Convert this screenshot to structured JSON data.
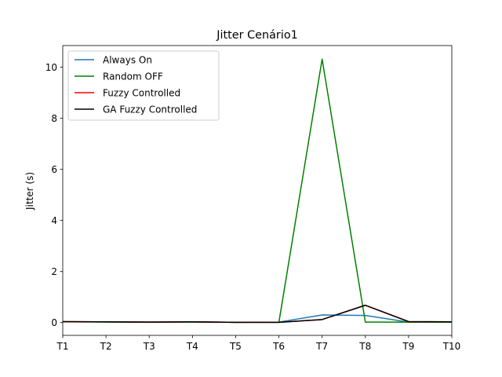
{
  "chart_data": {
    "type": "line",
    "title": "Jitter Cenário1",
    "xlabel": "",
    "ylabel": "Jitter (s)",
    "categories": [
      "T1",
      "T2",
      "T3",
      "T4",
      "T5",
      "T6",
      "T7",
      "T8",
      "T9",
      "T10"
    ],
    "ylim": [
      -0.5,
      10.85
    ],
    "yticks": [
      0,
      2,
      4,
      6,
      8,
      10
    ],
    "grid": false,
    "legend_position": "top-left",
    "series": [
      {
        "name": "Always On",
        "color": "#1f77b4",
        "values": [
          0.03,
          0.03,
          0.02,
          0.03,
          0.01,
          0.02,
          0.3,
          0.28,
          0.02,
          0.02
        ]
      },
      {
        "name": "Random OFF",
        "color": "#008000",
        "values": [
          0.03,
          0.02,
          0.02,
          0.02,
          0.01,
          0.01,
          10.32,
          0.02,
          0.02,
          0.02
        ]
      },
      {
        "name": "Fuzzy Controlled",
        "color": "#ff0000",
        "values": [
          0.04,
          0.03,
          0.02,
          0.03,
          0.01,
          0.01,
          0.12,
          0.68,
          0.04,
          0.03
        ]
      },
      {
        "name": "GA Fuzzy Controlled",
        "color": "#000000",
        "values": [
          0.04,
          0.03,
          0.02,
          0.03,
          0.01,
          0.01,
          0.12,
          0.68,
          0.04,
          0.03
        ]
      }
    ]
  }
}
